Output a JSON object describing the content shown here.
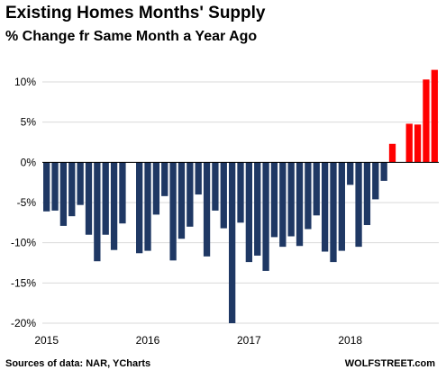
{
  "title": "Existing Homes Months' Supply",
  "subtitle": "% Change fr Same Month a Year Ago",
  "source": "Sources of data: NAR, YCharts",
  "brand": "WOLFSTREET.com",
  "colors": {
    "negative": "#1f3864",
    "positive": "#ff0000",
    "grid": "#d9d9d9",
    "axis": "#000000"
  },
  "chart_data": {
    "type": "bar",
    "title": "Existing Homes Months' Supply",
    "subtitle": "% Change fr Same Month a Year Ago",
    "xlabel": "",
    "ylabel": "",
    "ylim": [
      -20,
      12
    ],
    "yticks": [
      10,
      5,
      0,
      -5,
      -10,
      -15,
      -20
    ],
    "ytick_labels": [
      "10%",
      "5%",
      "0%",
      "-5%",
      "-10%",
      "-15%",
      "-20%"
    ],
    "x_tick_labels": [
      "2015",
      "2016",
      "2017",
      "2018"
    ],
    "grid": true,
    "legend": "none",
    "categories": [
      "2015-01",
      "2015-02",
      "2015-03",
      "2015-04",
      "2015-05",
      "2015-06",
      "2015-07",
      "2015-08",
      "2015-09",
      "2015-10",
      "2015-11",
      "2015-12",
      "2016-01",
      "2016-02",
      "2016-03",
      "2016-04",
      "2016-05",
      "2016-06",
      "2016-07",
      "2016-08",
      "2016-09",
      "2016-10",
      "2016-11",
      "2016-12",
      "2017-01",
      "2017-02",
      "2017-03",
      "2017-04",
      "2017-05",
      "2017-06",
      "2017-07",
      "2017-08",
      "2017-09",
      "2017-10",
      "2017-11",
      "2017-12",
      "2018-01",
      "2018-02",
      "2018-03",
      "2018-04",
      "2018-05",
      "2018-06",
      "2018-07",
      "2018-08",
      "2018-09",
      "2018-10",
      "2018-11"
    ],
    "values": [
      -6.1,
      -6.0,
      -7.9,
      -6.7,
      -5.3,
      -9.0,
      -12.3,
      -9.0,
      -10.9,
      -7.6,
      null,
      -11.3,
      -11.0,
      -6.5,
      -4.2,
      -12.2,
      -9.5,
      -8.0,
      -4.0,
      -11.7,
      -6.0,
      -8.2,
      -20.0,
      -7.5,
      -12.4,
      -11.6,
      -13.5,
      -9.3,
      -10.5,
      -9.2,
      -10.4,
      -8.3,
      -6.6,
      -11.1,
      -12.4,
      -11.0,
      -2.8,
      -10.5,
      -7.8,
      -4.6,
      -2.3,
      2.3,
      null,
      4.8,
      4.7,
      10.3,
      11.5
    ]
  }
}
